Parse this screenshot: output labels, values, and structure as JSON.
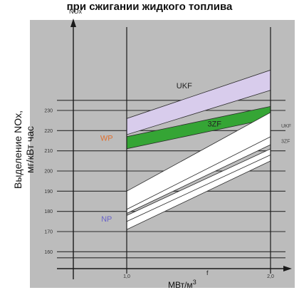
{
  "title": "при сжигании жидкого топлива",
  "ylabel_line1": "Выделение NOx,",
  "ylabel_line2": "мг/кВт час",
  "y_axis_name": "NOx",
  "x_axis_name": "f",
  "x_unit_text": "МВт/м",
  "x_unit_sup": "3",
  "colors": {
    "background": "#bcbcbc",
    "grid": "#2b2b2b",
    "ukf": "#d8ccec",
    "wp": "#35a535",
    "bands": "#ffffff",
    "wp_label": "#e07030",
    "np_label": "#6a64c8"
  },
  "chart_data": {
    "type": "area",
    "xlim": [
      0.0,
      2.2
    ],
    "ylim": [
      152,
      246
    ],
    "x_ticks": [
      {
        "v": 1.0,
        "label": "1,0"
      },
      {
        "v": 2.0,
        "label": "2,0"
      }
    ],
    "y_ticks": [
      {
        "v": 160,
        "label": "160"
      },
      {
        "v": 170,
        "label": "170"
      },
      {
        "v": 180,
        "label": "180"
      },
      {
        "v": 190,
        "label": "190"
      },
      {
        "v": 200,
        "label": "200"
      },
      {
        "v": 210,
        "label": "210"
      },
      {
        "v": 220,
        "label": "220"
      },
      {
        "v": 230,
        "label": "230"
      }
    ],
    "extra_gridlines": [
      235,
      157
    ],
    "bands": [
      {
        "name": "UKF",
        "color": "#d8ccec",
        "x": [
          1.0,
          2.0
        ],
        "lower": [
          218,
          240
        ],
        "upper": [
          226,
          250
        ]
      },
      {
        "name": "WP",
        "color": "#35a535",
        "x": [
          1.0,
          2.0
        ],
        "lower": [
          211,
          226
        ],
        "upper": [
          217,
          232
        ]
      },
      {
        "name": "3ZF",
        "color": "#ffffff",
        "x": [
          1.0,
          2.0
        ],
        "lower": [
          179,
          213
        ],
        "upper": [
          190,
          229
        ]
      },
      {
        "name": "NP",
        "color": "#ffffff",
        "x": [
          1.0,
          2.0
        ],
        "lower": [
          171,
          205
        ],
        "upper": [
          178,
          211
        ]
      }
    ],
    "band_edges": [
      {
        "x": [
          1.0,
          2.0
        ],
        "y": [
          181,
          217
        ]
      },
      {
        "x": [
          1.0,
          2.0
        ],
        "y": [
          175,
          208
        ]
      }
    ],
    "labels": [
      {
        "text": "UKF",
        "x": 1.4,
        "y": 241,
        "color": "#222222"
      },
      {
        "text": "3ZF",
        "x": 1.61,
        "y": 222,
        "color": "#222222"
      },
      {
        "text": "WP",
        "x": 0.86,
        "y": 215,
        "color": "#e07030"
      },
      {
        "text": "NP",
        "x": 0.86,
        "y": 175,
        "color": "#6a64c8"
      }
    ],
    "side_labels": [
      {
        "text": "UKF",
        "y": 221.5
      },
      {
        "text": "3ZF",
        "y": 214
      }
    ]
  }
}
